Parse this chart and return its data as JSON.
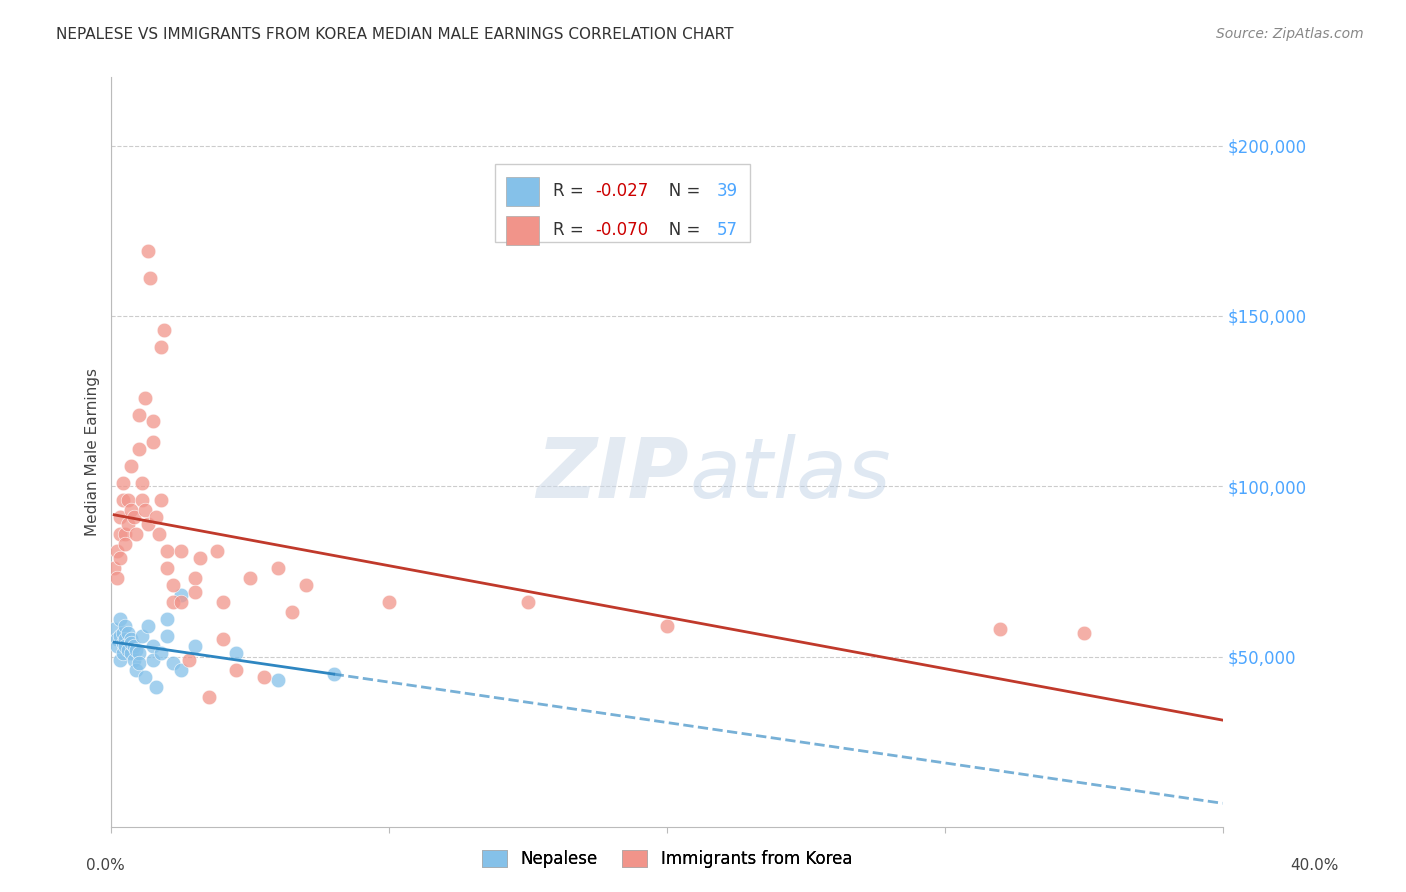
{
  "title": "NEPALESE VS IMMIGRANTS FROM KOREA MEDIAN MALE EARNINGS CORRELATION CHART",
  "source": "Source: ZipAtlas.com",
  "ylabel": "Median Male Earnings",
  "ytick_labels": [
    "$50,000",
    "$100,000",
    "$150,000",
    "$200,000"
  ],
  "ytick_values": [
    50000,
    100000,
    150000,
    200000
  ],
  "ylim": [
    0,
    220000
  ],
  "xlim": [
    0.0,
    0.4
  ],
  "legend1_R": "-0.027",
  "legend1_N": "39",
  "legend2_R": "-0.070",
  "legend2_N": "57",
  "watermark": "ZIPatlas",
  "nepalese_color": "#85c1e9",
  "korea_color": "#f1948a",
  "nepalese_line_color": "#2e86c1",
  "korea_line_color": "#c0392b",
  "nepalese_scatter": [
    [
      0.001,
      58000
    ],
    [
      0.002,
      55000
    ],
    [
      0.002,
      53000
    ],
    [
      0.003,
      49000
    ],
    [
      0.003,
      61000
    ],
    [
      0.003,
      56000
    ],
    [
      0.004,
      51000
    ],
    [
      0.004,
      54000
    ],
    [
      0.004,
      57000
    ],
    [
      0.005,
      59000
    ],
    [
      0.005,
      55000
    ],
    [
      0.005,
      53000
    ],
    [
      0.006,
      52000
    ],
    [
      0.006,
      57000
    ],
    [
      0.007,
      51000
    ],
    [
      0.007,
      55000
    ],
    [
      0.007,
      54000
    ],
    [
      0.008,
      53000
    ],
    [
      0.008,
      49000
    ],
    [
      0.009,
      46000
    ],
    [
      0.009,
      52000
    ],
    [
      0.01,
      51000
    ],
    [
      0.01,
      48000
    ],
    [
      0.011,
      56000
    ],
    [
      0.012,
      44000
    ],
    [
      0.013,
      59000
    ],
    [
      0.015,
      53000
    ],
    [
      0.015,
      49000
    ],
    [
      0.016,
      41000
    ],
    [
      0.018,
      51000
    ],
    [
      0.02,
      61000
    ],
    [
      0.02,
      56000
    ],
    [
      0.022,
      48000
    ],
    [
      0.025,
      46000
    ],
    [
      0.025,
      68000
    ],
    [
      0.03,
      53000
    ],
    [
      0.045,
      51000
    ],
    [
      0.06,
      43000
    ],
    [
      0.08,
      45000
    ]
  ],
  "korea_scatter": [
    [
      0.001,
      76000
    ],
    [
      0.002,
      73000
    ],
    [
      0.002,
      81000
    ],
    [
      0.003,
      86000
    ],
    [
      0.003,
      79000
    ],
    [
      0.003,
      91000
    ],
    [
      0.004,
      101000
    ],
    [
      0.004,
      96000
    ],
    [
      0.005,
      86000
    ],
    [
      0.005,
      83000
    ],
    [
      0.006,
      89000
    ],
    [
      0.006,
      96000
    ],
    [
      0.007,
      93000
    ],
    [
      0.007,
      106000
    ],
    [
      0.008,
      91000
    ],
    [
      0.009,
      86000
    ],
    [
      0.01,
      111000
    ],
    [
      0.01,
      121000
    ],
    [
      0.011,
      96000
    ],
    [
      0.011,
      101000
    ],
    [
      0.012,
      126000
    ],
    [
      0.012,
      93000
    ],
    [
      0.013,
      89000
    ],
    [
      0.013,
      169000
    ],
    [
      0.014,
      161000
    ],
    [
      0.015,
      119000
    ],
    [
      0.015,
      113000
    ],
    [
      0.016,
      91000
    ],
    [
      0.017,
      86000
    ],
    [
      0.018,
      96000
    ],
    [
      0.018,
      141000
    ],
    [
      0.019,
      146000
    ],
    [
      0.02,
      81000
    ],
    [
      0.02,
      76000
    ],
    [
      0.022,
      71000
    ],
    [
      0.022,
      66000
    ],
    [
      0.025,
      81000
    ],
    [
      0.025,
      66000
    ],
    [
      0.028,
      49000
    ],
    [
      0.03,
      73000
    ],
    [
      0.03,
      69000
    ],
    [
      0.032,
      79000
    ],
    [
      0.035,
      38000
    ],
    [
      0.038,
      81000
    ],
    [
      0.04,
      66000
    ],
    [
      0.04,
      55000
    ],
    [
      0.045,
      46000
    ],
    [
      0.05,
      73000
    ],
    [
      0.055,
      44000
    ],
    [
      0.06,
      76000
    ],
    [
      0.065,
      63000
    ],
    [
      0.07,
      71000
    ],
    [
      0.1,
      66000
    ],
    [
      0.15,
      66000
    ],
    [
      0.2,
      59000
    ],
    [
      0.32,
      58000
    ],
    [
      0.35,
      57000
    ]
  ],
  "background_color": "#ffffff",
  "grid_color": "#cccccc",
  "title_color": "#333333",
  "source_color": "#888888",
  "ytick_color": "#4da6ff"
}
